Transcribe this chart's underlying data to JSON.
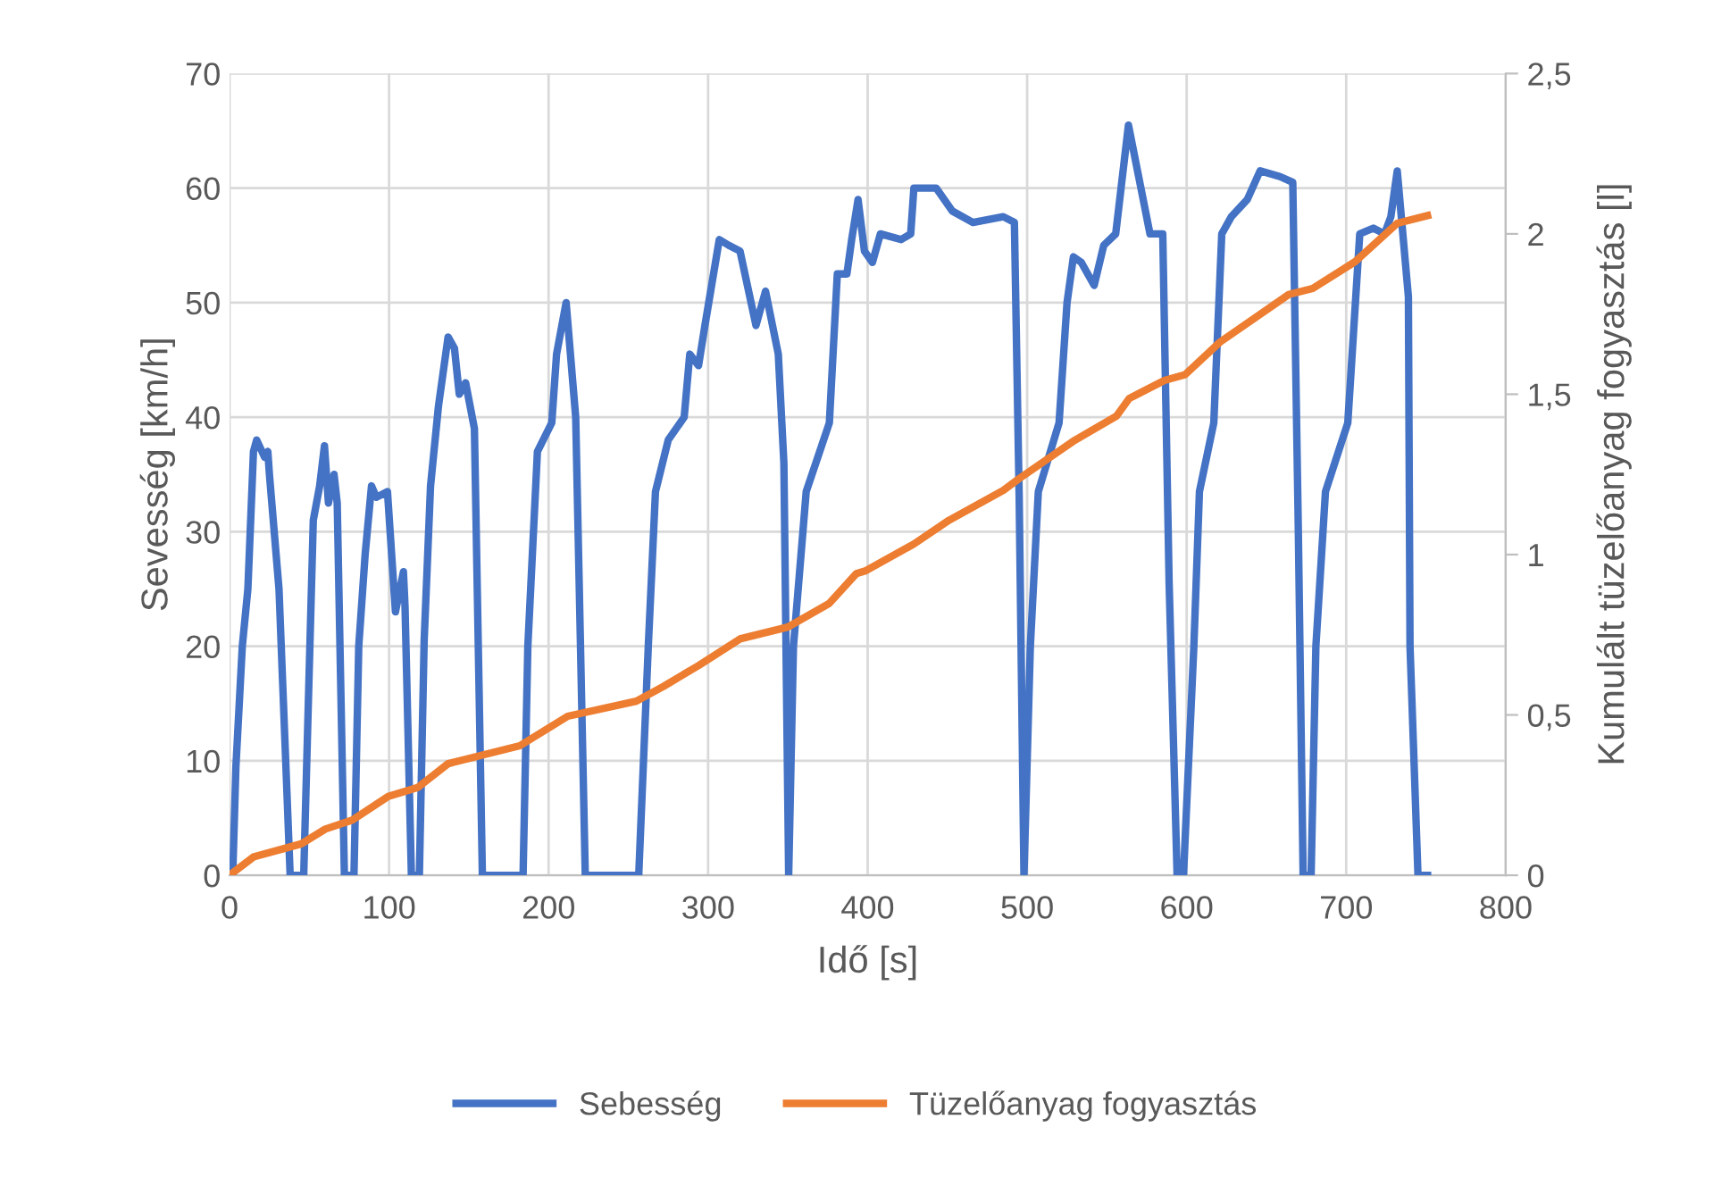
{
  "chart_data": {
    "type": "line",
    "xlabel": "Idő [s]",
    "ylabel": "Sevesség [km/h]",
    "y2label": "Kumulált tüzelőanyag fogyasztás [l]",
    "xlim": [
      0,
      800
    ],
    "xticks": [
      0,
      100,
      200,
      300,
      400,
      500,
      600,
      700,
      800
    ],
    "ylim": [
      0,
      70
    ],
    "yticks": [
      0,
      10,
      20,
      30,
      40,
      50,
      60,
      70
    ],
    "y2lim": [
      0,
      2.5
    ],
    "y2ticks": [
      0,
      {
        "value": 0.5,
        "label": "0,5"
      },
      1,
      {
        "value": 1.5,
        "label": "1,5"
      },
      2,
      {
        "value": 2.5,
        "label": "2,5"
      }
    ],
    "grid": true,
    "legend": "bottom",
    "marker": "none",
    "line_style": "solid",
    "series": [
      {
        "name": "Sebesség",
        "color": "#4472c4",
        "x": [
          2,
          4,
          8,
          11.5,
          15,
          17,
          22,
          24,
          25,
          31,
          38,
          46.5,
          49,
          52.5,
          56.5,
          59.5,
          62,
          65.5,
          67.5,
          72,
          78,
          81,
          85,
          89,
          92,
          99,
          104,
          109,
          110,
          114,
          119,
          122,
          126,
          131,
          137,
          141,
          144,
          148,
          153.5,
          158.5,
          184,
          187,
          193,
          202,
          205,
          211,
          217,
          223,
          256.5,
          262.5,
          267,
          275,
          285,
          288.5,
          294,
          298,
          307,
          313,
          320,
          330,
          336,
          344,
          347.5,
          350.5,
          353.5,
          361.5,
          376,
          381,
          387,
          390,
          394,
          398,
          403,
          408,
          421,
          427,
          429,
          443,
          453,
          466,
          485,
          492,
          495,
          498,
          502,
          507,
          520,
          525,
          529,
          534,
          542,
          548,
          555.5,
          563.5,
          577,
          585,
          589,
          594,
          598,
          604.5,
          608,
          617,
          622,
          628,
          638,
          646,
          658.5,
          666.5,
          670,
          673,
          678,
          681,
          687,
          701,
          708.5,
          717,
          724,
          728,
          732,
          739,
          740,
          745,
          751
        ],
        "values": [
          0,
          9.5,
          20,
          25,
          37,
          38,
          36.5,
          37,
          35,
          25,
          0,
          0,
          13,
          31,
          34,
          37.5,
          32.5,
          35,
          32.5,
          0,
          0,
          20,
          28,
          34,
          33,
          33.5,
          23,
          26.5,
          23.5,
          0,
          0,
          20.5,
          34,
          41,
          47,
          46,
          42,
          43,
          39,
          0,
          0,
          20,
          37,
          39.5,
          45.5,
          50,
          40,
          0,
          0,
          20,
          33.5,
          38,
          40,
          45.5,
          44.5,
          48,
          55.5,
          55,
          54.5,
          48,
          51,
          45.5,
          36,
          0,
          20,
          33.5,
          39.5,
          52.5,
          52.5,
          55.5,
          59,
          54.5,
          53.5,
          56,
          55.5,
          56,
          60,
          60,
          58,
          57,
          57.5,
          57,
          33,
          0,
          20,
          33.5,
          39.5,
          50,
          54,
          53.5,
          51.5,
          55,
          56,
          65.5,
          56,
          56,
          25.5,
          0,
          0,
          20,
          33.5,
          39.5,
          56,
          57.5,
          59,
          61.5,
          61,
          60.5,
          30,
          0,
          0,
          20,
          33.5,
          39.5,
          56,
          56.5,
          56,
          57.5,
          61.5,
          50.5,
          20,
          0,
          0
        ]
      },
      {
        "name": "Tüzelőanyag fogyasztás",
        "color": "#ed7d31",
        "axis": "y2",
        "x": [
          0,
          15,
          45,
          60,
          77,
          99.5,
          118,
          137,
          182,
          212,
          255,
          272,
          294,
          320,
          350,
          376,
          393,
          399,
          429,
          451,
          485,
          495,
          530,
          556,
          564,
          586,
          599,
          621,
          664,
          679,
          705.5,
          732,
          751
        ],
        "values": [
          0,
          0.057,
          0.098,
          0.144,
          0.172,
          0.246,
          0.274,
          0.348,
          0.404,
          0.496,
          0.543,
          0.589,
          0.654,
          0.737,
          0.774,
          0.848,
          0.941,
          0.95,
          1.033,
          1.107,
          1.2,
          1.237,
          1.357,
          1.432,
          1.487,
          1.543,
          1.561,
          1.663,
          1.811,
          1.83,
          1.913,
          2.033,
          2.057
        ]
      }
    ]
  }
}
